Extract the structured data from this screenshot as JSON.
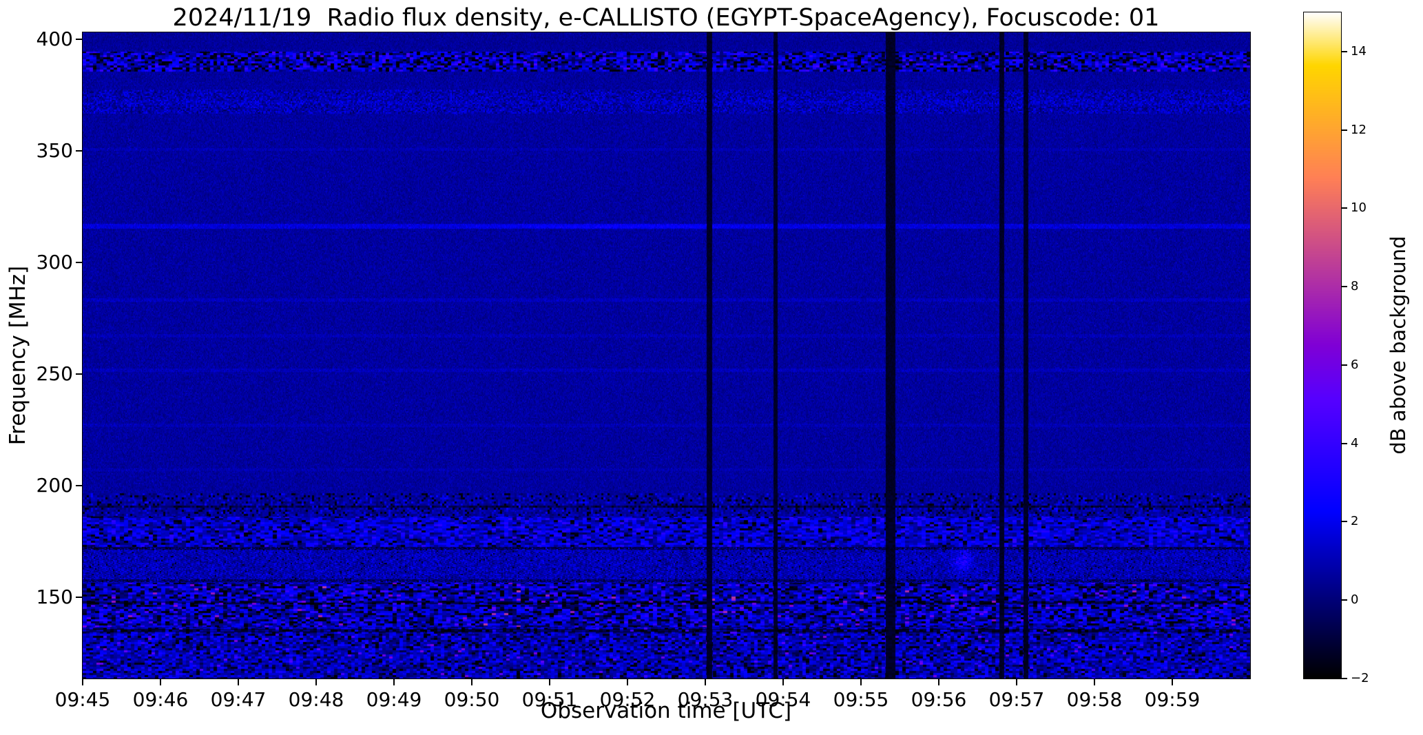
{
  "chart_data": {
    "type": "heatmap",
    "title": "2024/11/19  Radio flux density, e-CALLISTO (EGYPT-SpaceAgency), Focuscode: 01",
    "xlabel": "Observation time [UTC]",
    "ylabel": "Frequency [MHz]",
    "colorbar_label": "dB above background",
    "colormap": "gnuplot2",
    "legend": "none",
    "grid": false,
    "x_range_min": [
      0,
      15
    ],
    "x_start_utc": "09:45",
    "y_range_mhz": [
      113.5,
      403
    ],
    "color_range_db": [
      -2,
      15
    ],
    "x_ticks": [
      {
        "m": 0,
        "label": "09:45"
      },
      {
        "m": 1,
        "label": "09:46"
      },
      {
        "m": 2,
        "label": "09:47"
      },
      {
        "m": 3,
        "label": "09:48"
      },
      {
        "m": 4,
        "label": "09:49"
      },
      {
        "m": 5,
        "label": "09:50"
      },
      {
        "m": 6,
        "label": "09:51"
      },
      {
        "m": 7,
        "label": "09:52"
      },
      {
        "m": 8,
        "label": "09:53"
      },
      {
        "m": 9,
        "label": "09:54"
      },
      {
        "m": 10,
        "label": "09:55"
      },
      {
        "m": 11,
        "label": "09:56"
      },
      {
        "m": 12,
        "label": "09:57"
      },
      {
        "m": 13,
        "label": "09:58"
      },
      {
        "m": 14,
        "label": "09:59"
      }
    ],
    "y_ticks": [
      {
        "v": 400,
        "label": "400"
      },
      {
        "v": 350,
        "label": "350"
      },
      {
        "v": 300,
        "label": "300"
      },
      {
        "v": 250,
        "label": "250"
      },
      {
        "v": 200,
        "label": "200"
      },
      {
        "v": 150,
        "label": "150"
      }
    ],
    "colorbar_ticks": [
      {
        "v": 14,
        "label": "14"
      },
      {
        "v": 12,
        "label": "12"
      },
      {
        "v": 10,
        "label": "10"
      },
      {
        "v": 8,
        "label": "8"
      },
      {
        "v": 6,
        "label": "6"
      },
      {
        "v": 4,
        "label": "4"
      },
      {
        "v": 2,
        "label": "2"
      },
      {
        "v": 0,
        "label": "0"
      },
      {
        "v": -2,
        "label": "−2"
      }
    ],
    "features": {
      "background": {
        "mean_db": 0.65,
        "sigma_db": 0.38,
        "block_w": 1,
        "block_h": 2
      },
      "bands": [
        {
          "f_lo": 395.5,
          "f_hi": 403.2,
          "mean_db": 0.55,
          "sigma_db": 0.32,
          "block_w": 1,
          "block_h": 2
        },
        {
          "f_lo": 385.5,
          "f_hi": 394.5,
          "mean_db": 1.1,
          "sigma_db": 1.5,
          "black_prob": 0.17,
          "bright_prob": 0.1,
          "bright_lo": 2.3,
          "bright_hi": 5.0,
          "block_w": 5,
          "block_h": 3
        },
        {
          "f_lo": 366.5,
          "f_hi": 377.5,
          "mean_db": 0.85,
          "sigma_db": 0.75,
          "bright_prob": 0.05,
          "bright_lo": 1.9,
          "bright_hi": 3.0,
          "block_w": 2,
          "block_h": 2
        },
        {
          "f_lo": 186.0,
          "f_hi": 196.5,
          "mean_db": 0.6,
          "sigma_db": 0.55,
          "black_prob": 0.1,
          "bright_prob": 0.06,
          "bright_lo": 1.8,
          "bright_hi": 2.8,
          "block_w": 3,
          "block_h": 3
        },
        {
          "f_lo": 172.5,
          "f_hi": 186.0,
          "mean_db": 1.35,
          "sigma_db": 1.15,
          "black_prob": 0.07,
          "bright_prob": 0.09,
          "bright_lo": 2.2,
          "bright_hi": 3.8,
          "block_w": 6,
          "block_h": 3
        },
        {
          "f_lo": 156.5,
          "f_hi": 172.5,
          "mean_db": 0.95,
          "sigma_db": 0.7,
          "black_prob": 0.02,
          "bright_prob": 0.03,
          "bright_lo": 2.0,
          "bright_hi": 3.0,
          "pattern_amp": 0.55,
          "block_w": 2,
          "block_h": 2
        },
        {
          "f_lo": 136.5,
          "f_hi": 156.5,
          "mean_db": 1.15,
          "sigma_db": 1.45,
          "black_prob": 0.13,
          "bright_prob": 0.07,
          "bright_lo": 2.4,
          "bright_hi": 8.5,
          "block_w": 6,
          "block_h": 3
        },
        {
          "f_lo": 113.0,
          "f_hi": 136.5,
          "mean_db": 0.95,
          "sigma_db": 1.15,
          "black_prob": 0.09,
          "bright_prob": 0.05,
          "bright_lo": 2.2,
          "bright_hi": 6.5,
          "block_w": 5,
          "block_h": 3
        }
      ],
      "lines": [
        {
          "f": 371.5,
          "width_mhz": 0.8,
          "boost_db": 0.3
        },
        {
          "f": 350.5,
          "width_mhz": 0.7,
          "boost_db": 0.35
        },
        {
          "f": 316.0,
          "width_mhz": 1.1,
          "boost_db": 1.0,
          "bright_prob": 0.04,
          "bright_hi": 3.2
        },
        {
          "f": 283.0,
          "width_mhz": 0.8,
          "boost_db": 0.5
        },
        {
          "f": 267.0,
          "width_mhz": 0.7,
          "boost_db": 0.35
        },
        {
          "f": 251.5,
          "width_mhz": 0.8,
          "boost_db": 0.45
        },
        {
          "f": 227.0,
          "width_mhz": 0.7,
          "boost_db": 0.35
        },
        {
          "f": 207.0,
          "width_mhz": 0.7,
          "boost_db": 0.3
        }
      ],
      "dark_lines": [
        {
          "f": 190.5,
          "width_mhz": 0.6,
          "drop_db": 1.3
        },
        {
          "f": 171.8,
          "width_mhz": 0.6,
          "drop_db": 1.5
        },
        {
          "f": 157.3,
          "width_mhz": 0.6,
          "drop_db": 1.2
        },
        {
          "f": 147.5,
          "width_mhz": 0.7,
          "drop_db": 1.9
        },
        {
          "f": 135.0,
          "width_mhz": 0.7,
          "drop_db": 1.7
        }
      ],
      "gaps": [
        {
          "t_min": 8.05,
          "w_min": 0.07
        },
        {
          "t_min": 8.9,
          "w_min": 0.05
        },
        {
          "t_min": 10.38,
          "w_min": 0.12
        },
        {
          "t_min": 11.81,
          "w_min": 0.055
        },
        {
          "t_min": 12.12,
          "w_min": 0.055
        }
      ],
      "specks": {
        "prob": 0.0012,
        "lo": 2.2,
        "hi": 3.6
      },
      "blobs": [
        {
          "t_min": 11.32,
          "f_mhz": 166,
          "rt_min": 0.12,
          "rf_mhz": 5,
          "boost_db": 2.0
        },
        {
          "t_min": 7.0,
          "f_mhz": 316,
          "rt_min": 1.7,
          "rf_mhz": 1.0,
          "boost_db": 0.7
        }
      ]
    }
  }
}
